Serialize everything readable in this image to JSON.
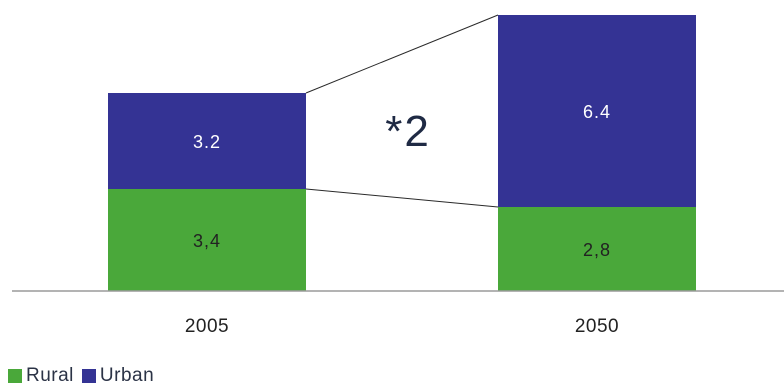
{
  "chart_data": {
    "type": "bar",
    "stacked": true,
    "categories": [
      "2005",
      "2050"
    ],
    "series": [
      {
        "name": "Rural",
        "values": [
          3.4,
          2.8
        ],
        "labels": [
          "3,4",
          "2,8"
        ],
        "color": "#4aa83a"
      },
      {
        "name": "Urban",
        "values": [
          3.2,
          6.4
        ],
        "labels": [
          "3.2",
          "6.4"
        ],
        "color": "#343394"
      }
    ],
    "annotation": "*2",
    "ylim": [
      0,
      9.2
    ],
    "legend_position": "bottom-left",
    "axis_color": "#9a9a9a",
    "label_colors": {
      "Rural": "#222222",
      "Urban": "#ffffff"
    }
  }
}
